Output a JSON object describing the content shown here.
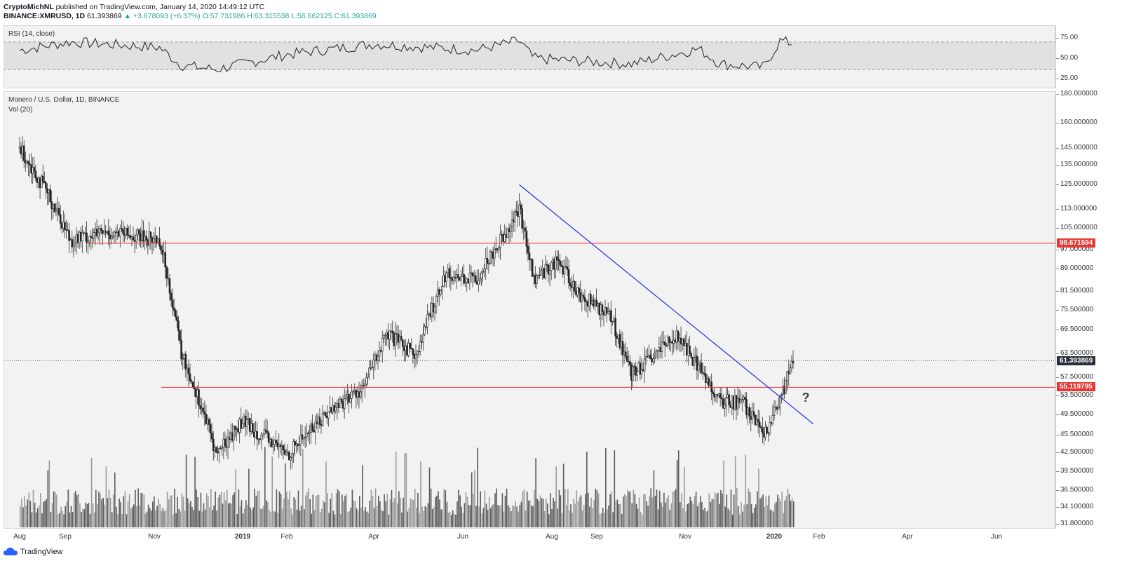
{
  "header": {
    "publisher": "CryptoMichNL",
    "published_text": "published on TradingView.com, January 14, 2020 14:49:12 UTC",
    "symbol": "BINANCE:XMRUSD, 1D",
    "last": "61.393869",
    "change": "▲ +3.678093 (+6.37%)",
    "o_label": "O:",
    "o_value": "57.731986",
    "h_label": "H:",
    "h_value": "63.315538",
    "l_label": "L:",
    "l_value": "56.662125",
    "c_label": "C:",
    "c_value": "61.393869"
  },
  "rsi_pane": {
    "label": "RSI (14, close)",
    "ticks": [
      "75.00",
      "50.00",
      "25.00"
    ]
  },
  "main_pane": {
    "title": "Monero / U.S. Dollar, 1D, BINANCE",
    "vol_label": "Vol (20)",
    "annotation": "?",
    "price_ticks": [
      "180.000000",
      "160.000000",
      "145.000000",
      "135.000000",
      "125.000000",
      "113.000000",
      "105.000000",
      "97.000000",
      "89.000000",
      "81.500000",
      "75.500000",
      "69.500000",
      "63.500000",
      "57.500000",
      "53.500000",
      "49.500000",
      "45.500000",
      "42.500000",
      "39.500000",
      "36.500000",
      "34.100000",
      "31.800000"
    ],
    "badges": {
      "resistance": "98.671594",
      "last": "61.393869",
      "support": "55.119795"
    }
  },
  "x_axis": [
    "Aug",
    "Sep",
    "Nov",
    "2019",
    "Feb",
    "Apr",
    "Jun",
    "Aug",
    "Sep",
    "Nov",
    "2020",
    "Feb",
    "Apr",
    "Jun"
  ],
  "footer": {
    "brand": "TradingView"
  },
  "colors": {
    "resistance": "#e53935",
    "support": "#e53935",
    "trendline": "#1e2fd6",
    "last_badge": "#2a2e39",
    "volume": "#6b6b6b"
  },
  "chart_data": {
    "type": "candlestick",
    "symbol": "XMRUSD",
    "period": "1D",
    "y_scale": "log",
    "horizontal_levels": [
      98.671594,
      55.119795
    ],
    "last_price": 61.393869,
    "trendline": {
      "from": [
        "2019-07-10",
        125
      ],
      "to": [
        "2020-01-28",
        47.5
      ]
    },
    "series": [
      {
        "name": "close",
        "x": [
          "2018-08-01",
          "2018-09-05",
          "2018-10-01",
          "2018-11-05",
          "2018-11-20",
          "2018-12-14",
          "2019-01-01",
          "2019-02-01",
          "2019-03-01",
          "2019-03-25",
          "2019-04-10",
          "2019-05-01",
          "2019-05-20",
          "2019-06-10",
          "2019-06-27",
          "2019-07-10",
          "2019-07-20",
          "2019-08-05",
          "2019-08-20",
          "2019-09-10",
          "2019-09-25",
          "2019-10-10",
          "2019-10-25",
          "2019-11-10",
          "2019-11-25",
          "2019-12-10",
          "2019-12-25",
          "2020-01-05",
          "2020-01-14"
        ],
        "values": [
          145,
          100,
          103,
          100,
          63,
          42,
          48,
          42,
          50,
          55,
          68,
          63,
          87,
          85,
          100,
          113,
          85,
          92,
          80,
          74,
          58,
          62,
          68,
          60,
          52,
          52,
          45,
          52,
          61.39
        ]
      }
    ],
    "rsi": {
      "upper": 70,
      "lower": 30,
      "x": [
        "2018-08-01",
        "2018-09-05",
        "2018-11-05",
        "2018-11-20",
        "2018-12-14",
        "2019-02-01",
        "2019-04-01",
        "2019-06-10",
        "2019-07-10",
        "2019-07-20",
        "2019-09-25",
        "2019-11-10",
        "2019-11-25",
        "2019-12-25",
        "2020-01-05",
        "2020-01-14"
      ],
      "values": [
        58,
        70,
        62,
        36,
        30,
        52,
        67,
        58,
        72,
        46,
        38,
        60,
        38,
        33,
        72,
        68
      ]
    }
  }
}
